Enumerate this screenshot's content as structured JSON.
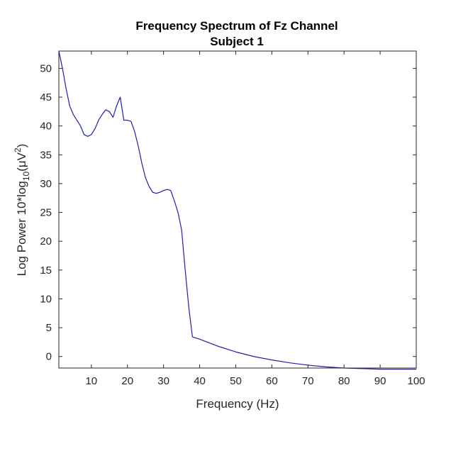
{
  "chart_data": {
    "type": "line",
    "title": "Frequency Spectrum of Fz Channel",
    "subtitle": "Subject 1",
    "xlabel": "Frequency (Hz)",
    "ylabel": {
      "prefix": "Log Power 10*log",
      "sub": "10",
      "mid": "(μV",
      "sup": "2",
      "suffix": ")"
    },
    "xlim": [
      1,
      100
    ],
    "ylim": [
      -2,
      53
    ],
    "xticks": [
      10,
      20,
      30,
      40,
      50,
      60,
      70,
      80,
      90,
      100
    ],
    "yticks": [
      0,
      5,
      10,
      15,
      20,
      25,
      30,
      35,
      40,
      45,
      50
    ],
    "grid": false,
    "colors": {
      "line": "#1f1fb4",
      "axes": "#262626"
    },
    "series": [
      {
        "x": [
          1,
          2,
          3,
          4,
          5,
          6,
          7,
          8,
          9,
          10,
          11,
          12,
          13,
          14,
          15,
          16,
          17,
          18,
          19,
          20,
          21,
          22,
          23,
          24,
          25,
          26,
          27,
          28,
          29,
          30,
          31,
          32,
          33,
          34,
          35,
          36,
          37,
          38,
          39,
          40,
          45,
          50,
          55,
          60,
          65,
          70,
          75,
          80,
          85,
          90,
          95,
          100
        ],
        "y": [
          53.0,
          50.0,
          46.5,
          43.5,
          42.0,
          41.0,
          40.0,
          38.5,
          38.2,
          38.5,
          39.5,
          41.0,
          42.0,
          42.8,
          42.5,
          41.5,
          43.5,
          45.0,
          41.0,
          41.0,
          40.8,
          39.0,
          36.5,
          33.5,
          31.0,
          29.5,
          28.5,
          28.3,
          28.5,
          28.8,
          29.0,
          28.8,
          27.0,
          25.0,
          22.0,
          15.0,
          8.5,
          3.4,
          3.2,
          3.0,
          1.8,
          0.8,
          0.0,
          -0.6,
          -1.1,
          -1.5,
          -1.8,
          -2.0,
          -2.1,
          -2.2,
          -2.2,
          -2.2
        ]
      }
    ]
  }
}
